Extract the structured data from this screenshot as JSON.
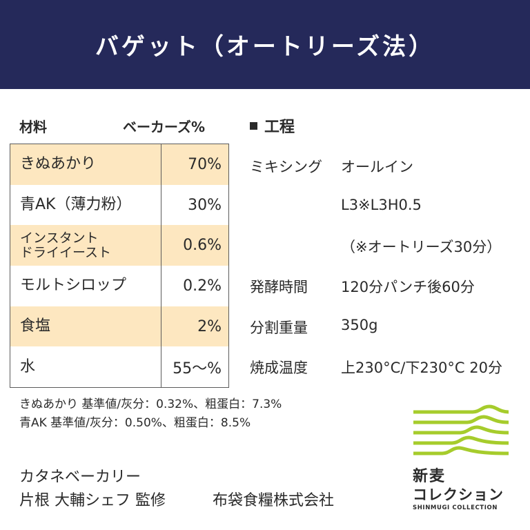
{
  "header": {
    "title": "バゲット（オートリーズ法）"
  },
  "materials": {
    "heading": "材料",
    "percent_heading": "ベーカーズ%",
    "rows": [
      {
        "name": "きぬあかり",
        "value": "70%"
      },
      {
        "name": "青AK（薄力粉）",
        "value": "30%"
      },
      {
        "name_line1": "インスタント",
        "name_line2": "ドライイースト",
        "value": "0.6%"
      },
      {
        "name": "モルトシロップ",
        "value": "0.2%"
      },
      {
        "name": "食塩",
        "value": "2%"
      },
      {
        "name": "水",
        "value": "55～%"
      }
    ]
  },
  "process": {
    "heading": "工程",
    "steps": [
      {
        "label": "ミキシング",
        "value": "オールイン"
      },
      {
        "label": "",
        "value": "L3※L3H0.5"
      },
      {
        "label": "",
        "value": "（※オートリーズ30分）"
      },
      {
        "label": "発酵時間",
        "value": "120分パンチ後60分"
      },
      {
        "label": "分割重量",
        "value": "350g"
      },
      {
        "label": "焼成温度",
        "value": "上230°C/下230°C 20分"
      }
    ]
  },
  "notes": [
    "きぬあかり 基準値/灰分：0.32%、粗蛋白：7.3%",
    "青AK 基準値/灰分：0.50%、粗蛋白：8.5%"
  ],
  "footer": {
    "bakery": "カタネベーカリー",
    "chef": "片根 大輔シェフ 監修",
    "company": "布袋食糧株式会社"
  },
  "logo": {
    "title_line1": "新麦",
    "title_line2": "コレクション",
    "subtitle": "SHINMUGI COLLECTION",
    "color": "#a6cc2c"
  },
  "colors": {
    "header_bg": "#25295a",
    "row_shade": "#fde7c0"
  }
}
